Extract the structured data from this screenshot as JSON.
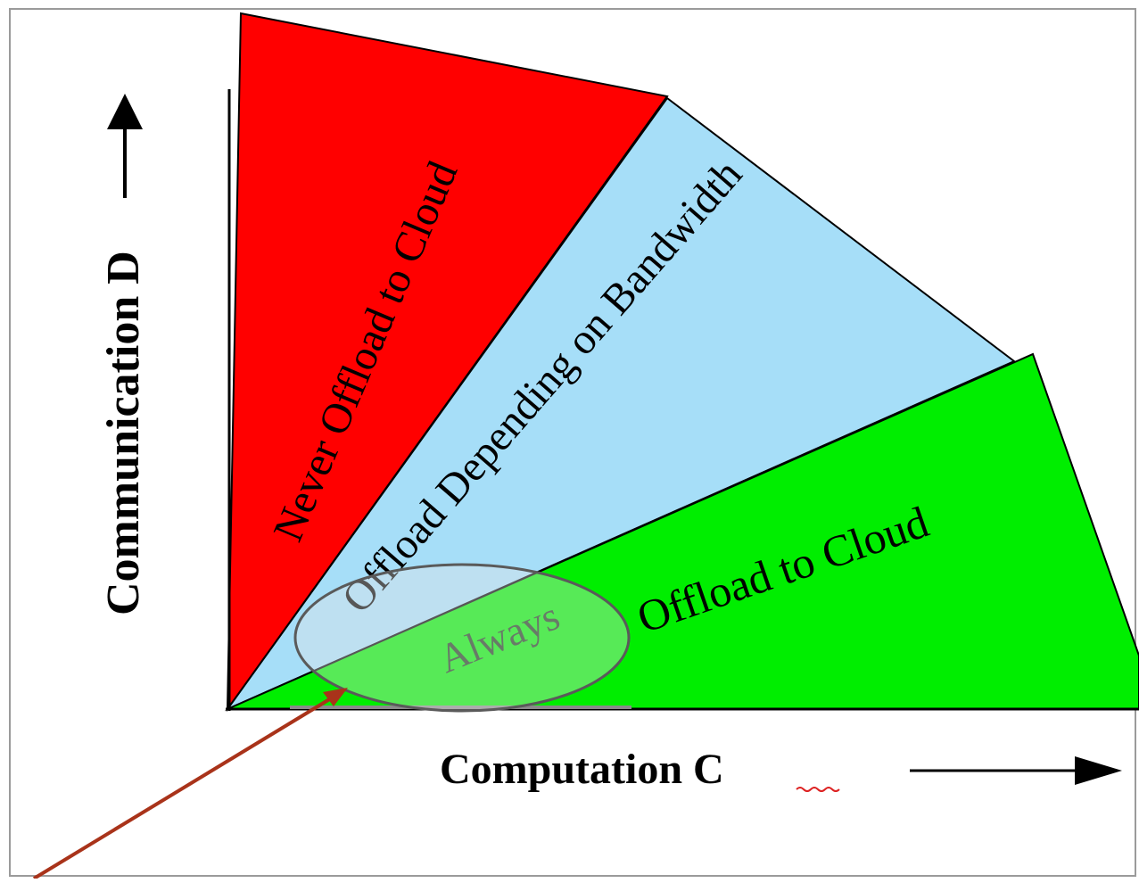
{
  "diagram": {
    "regions": {
      "never": {
        "label": "Never Offload to Cloud",
        "color": "#ff0000"
      },
      "depending": {
        "label": "Offload Depending on Bandwidth",
        "color": "#a6def8"
      },
      "always": {
        "label_part1": "Always",
        "label_part2": "Offload to Cloud",
        "color": "#00ee00"
      }
    },
    "axes": {
      "x_label": "Computation C",
      "y_label": "Communication D"
    },
    "annotation": {
      "arrow_color": "#a9331a"
    }
  }
}
